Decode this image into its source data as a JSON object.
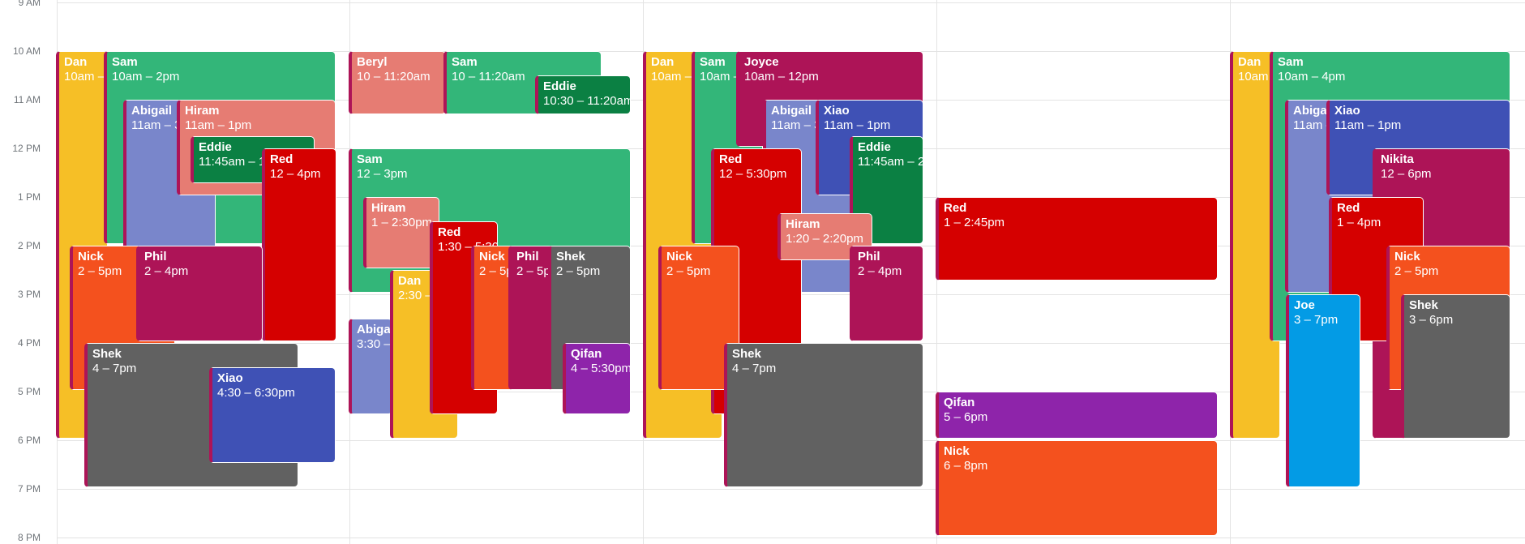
{
  "calendar": {
    "hours": [
      "9 AM",
      "10 AM",
      "11 AM",
      "12 PM",
      "1 PM",
      "2 PM",
      "3 PM",
      "4 PM",
      "5 PM",
      "6 PM",
      "7 PM",
      "8 PM"
    ],
    "events": [
      {
        "title": "Dan",
        "time": "10am – 6pm",
        "color": "#f6bf26"
      },
      {
        "title": "Sam",
        "time": "10am – 2pm",
        "color": "#33b679"
      },
      {
        "title": "Abigail",
        "time": "11am – 3pm",
        "color": "#7986cb"
      },
      {
        "title": "Hiram",
        "time": "11am – 1pm",
        "color": "#e67c73"
      },
      {
        "title": "Eddie",
        "time": "11:45am – 1pm",
        "color": "#0b8043"
      },
      {
        "title": "Red",
        "time": "12 – 4pm",
        "color": "#d50000"
      },
      {
        "title": "Nick",
        "time": "2 – 5pm",
        "color": "#f4511e"
      },
      {
        "title": "Phil",
        "time": "2 – 4pm",
        "color": "#ad1457"
      },
      {
        "title": "Shek",
        "time": "4 – 7pm",
        "color": "#616161"
      },
      {
        "title": "Xiao",
        "time": "4:30 – 6:30pm",
        "color": "#3f51b5"
      },
      {
        "title": "Beryl",
        "time": "10 – 11:20am",
        "color": "#e67c73"
      },
      {
        "title": "Sam",
        "time": "10 – 11:20am",
        "color": "#33b679"
      },
      {
        "title": "Eddie",
        "time": "10:30 – 11:20am",
        "color": "#0b8043"
      },
      {
        "title": "Sam",
        "time": "12 – 3pm",
        "color": "#33b679"
      },
      {
        "title": "Hiram",
        "time": "1 – 2:30pm",
        "color": "#e67c73"
      },
      {
        "title": "Abigail",
        "time": "3:30 – 5:30pm",
        "color": "#7986cb"
      },
      {
        "title": "Dan",
        "time": "2:30 – 6pm",
        "color": "#f6bf26"
      },
      {
        "title": "Red",
        "time": "1:30 – 5:30pm",
        "color": "#d50000"
      },
      {
        "title": "Nick",
        "time": "2 – 5pm",
        "color": "#f4511e"
      },
      {
        "title": "Phil",
        "time": "2 – 5pm",
        "color": "#ad1457"
      },
      {
        "title": "Shek",
        "time": "2 – 5pm",
        "color": "#616161"
      },
      {
        "title": "Qifan",
        "time": "4 – 5:30pm",
        "color": "#8e24aa"
      },
      {
        "title": "Dan",
        "time": "10am – 6pm",
        "color": "#f6bf26"
      },
      {
        "title": "Sam",
        "time": "10am – 2pm",
        "color": "#33b679"
      },
      {
        "title": "Joyce",
        "time": "10am – 12pm",
        "color": "#ad1457"
      },
      {
        "title": "Abigail",
        "time": "11am – 3pm",
        "color": "#7986cb"
      },
      {
        "title": "Xiao",
        "time": "11am – 1pm",
        "color": "#3f51b5"
      },
      {
        "title": "Eddie",
        "time": "11:45am – 2pm",
        "color": "#0b8043"
      },
      {
        "title": "Red",
        "time": "12 – 5:30pm",
        "color": "#d50000"
      },
      {
        "title": "Hiram",
        "time": "1:20 – 2:20pm",
        "color": "#e67c73"
      },
      {
        "title": "Nick",
        "time": "2 – 5pm",
        "color": "#f4511e"
      },
      {
        "title": "Phil",
        "time": "2 – 4pm",
        "color": "#ad1457"
      },
      {
        "title": "Shek",
        "time": "4 – 7pm",
        "color": "#616161"
      },
      {
        "title": "Red",
        "time": "1 – 2:45pm",
        "color": "#d50000"
      },
      {
        "title": "Qifan",
        "time": "5 – 6pm",
        "color": "#8e24aa"
      },
      {
        "title": "Nick",
        "time": "6 – 8pm",
        "color": "#f4511e"
      },
      {
        "title": "Dan",
        "time": "10am – 6pm",
        "color": "#f6bf26"
      },
      {
        "title": "Sam",
        "time": "10am – 4pm",
        "color": "#33b679"
      },
      {
        "title": "Abigail",
        "time": "11am – 3pm",
        "color": "#7986cb"
      },
      {
        "title": "Xiao",
        "time": "11am – 1pm",
        "color": "#3f51b5"
      },
      {
        "title": "Nikita",
        "time": "12 – 6pm",
        "color": "#ad1457"
      },
      {
        "title": "Red",
        "time": "1 – 4pm",
        "color": "#d50000"
      },
      {
        "title": "Nick",
        "time": "2 – 5pm",
        "color": "#f4511e"
      },
      {
        "title": "Joe",
        "time": "3 – 7pm",
        "color": "#039be5"
      },
      {
        "title": "Shek",
        "time": "3 – 6pm",
        "color": "#616161"
      }
    ]
  }
}
